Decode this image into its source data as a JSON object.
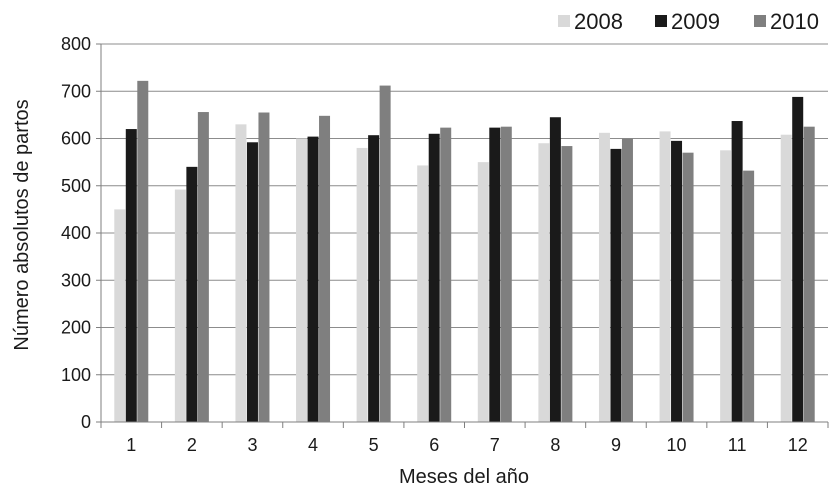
{
  "chart_data": {
    "type": "bar",
    "title": "",
    "xlabel": "Meses del año",
    "ylabel": "Número absolutos de partos",
    "categories": [
      "1",
      "2",
      "3",
      "4",
      "5",
      "6",
      "7",
      "8",
      "9",
      "10",
      "11",
      "12"
    ],
    "ylim": [
      0,
      800
    ],
    "yticks": [
      "0",
      "100",
      "200",
      "300",
      "400",
      "500",
      "600",
      "700",
      "800"
    ],
    "grid": true,
    "legend_position": "top-right",
    "series": [
      {
        "name": "2008",
        "color": "#d9d9d9",
        "values": [
          450,
          492,
          630,
          600,
          580,
          543,
          550,
          590,
          612,
          615,
          575,
          608
        ]
      },
      {
        "name": "2009",
        "color": "#1a1a1a",
        "values": [
          620,
          540,
          592,
          604,
          607,
          610,
          623,
          645,
          578,
          595,
          637,
          688
        ]
      },
      {
        "name": "2010",
        "color": "#7f7f7f",
        "values": [
          722,
          656,
          655,
          648,
          712,
          623,
          625,
          584,
          600,
          570,
          532,
          625
        ]
      }
    ]
  }
}
